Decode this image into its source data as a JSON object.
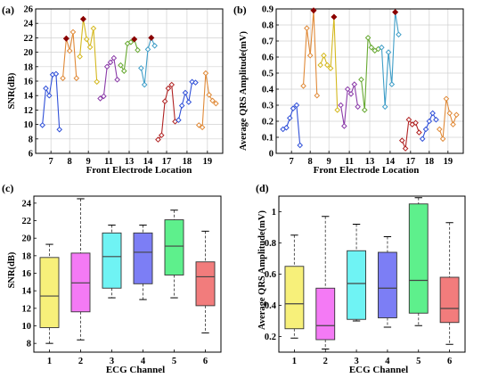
{
  "chart_data": [
    {
      "panel": "(a)",
      "type": "line",
      "xlabel": "Front Electrode Location",
      "ylabel": "SNR(dB)",
      "ylim": [
        6,
        26
      ],
      "yticks": [
        6,
        8,
        10,
        12,
        14,
        16,
        18,
        20,
        22,
        24,
        26
      ],
      "x_tick_labels": [
        "7",
        "8",
        "9",
        "11",
        "13",
        "14",
        "17",
        "18",
        "19"
      ],
      "grid": true,
      "groups": [
        {
          "label": "7",
          "color": "#3050d8",
          "points": [
            [
              0.4,
              9.9
            ],
            [
              0.6,
              15.0
            ],
            [
              0.8,
              14.0
            ],
            [
              1.0,
              16.9
            ],
            [
              1.2,
              17.0
            ],
            [
              1.4,
              9.3
            ]
          ],
          "star": null
        },
        {
          "label": "8",
          "color": "#e08a38",
          "points": [
            [
              1.6,
              16.4
            ],
            [
              1.8,
              21.9
            ],
            [
              2.0,
              20.2
            ],
            [
              2.2,
              22.8
            ],
            [
              2.4,
              16.4
            ]
          ],
          "star": [
            1.8,
            21.9
          ]
        },
        {
          "label": "9",
          "color": "#d4b81e",
          "points": [
            [
              2.6,
              19.4
            ],
            [
              2.8,
              24.6
            ],
            [
              3.0,
              21.8
            ],
            [
              3.2,
              20.7
            ],
            [
              3.4,
              23.3
            ],
            [
              3.6,
              15.9
            ]
          ],
          "star": [
            2.8,
            24.6
          ]
        },
        {
          "label": "11",
          "color": "#8a3aa8",
          "points": [
            [
              3.8,
              13.6
            ],
            [
              4.0,
              13.9
            ],
            [
              4.2,
              18.0
            ],
            [
              4.4,
              18.6
            ],
            [
              4.6,
              19.2
            ],
            [
              4.8,
              16.2
            ]
          ],
          "star": null
        },
        {
          "label": "13",
          "color": "#66a830",
          "points": [
            [
              5.0,
              18.2
            ],
            [
              5.2,
              17.4
            ],
            [
              5.4,
              21.2
            ],
            [
              5.6,
              21.4
            ],
            [
              5.8,
              21.8
            ],
            [
              6.0,
              20.3
            ]
          ],
          "star": [
            5.8,
            21.8
          ]
        },
        {
          "label": "14",
          "color": "#3f9ec8",
          "points": [
            [
              6.2,
              17.8
            ],
            [
              6.4,
              15.5
            ],
            [
              6.6,
              20.4
            ],
            [
              6.8,
              22.0
            ],
            [
              7.0,
              20.9
            ]
          ],
          "star": [
            6.8,
            22.0
          ]
        },
        {
          "label": "17",
          "color": "#b02222",
          "points": [
            [
              7.2,
              7.9
            ],
            [
              7.4,
              8.5
            ],
            [
              7.6,
              13.2
            ],
            [
              7.8,
              15.0
            ],
            [
              8.0,
              15.5
            ],
            [
              8.2,
              10.4
            ]
          ],
          "star": null
        },
        {
          "label": "18",
          "color": "#3050d8",
          "points": [
            [
              8.4,
              10.6
            ],
            [
              8.6,
              12.6
            ],
            [
              8.8,
              14.4
            ],
            [
              9.0,
              13.1
            ],
            [
              9.2,
              15.9
            ],
            [
              9.4,
              15.8
            ]
          ],
          "star": null
        },
        {
          "label": "19",
          "color": "#e08a38",
          "points": [
            [
              9.6,
              9.9
            ],
            [
              9.8,
              9.6
            ],
            [
              10.0,
              17.1
            ],
            [
              10.2,
              14.1
            ],
            [
              10.4,
              13.3
            ],
            [
              10.6,
              12.9
            ]
          ],
          "star": null
        }
      ],
      "xlim": [
        0,
        11
      ]
    },
    {
      "panel": "(b)",
      "type": "line",
      "xlabel": "Front Electrode Location",
      "ylabel": "Average QRS Amplitude(mV)",
      "ylim": [
        0,
        0.9
      ],
      "yticks": [
        0,
        0.1,
        0.2,
        0.3,
        0.4,
        0.5,
        0.6,
        0.7,
        0.8,
        0.9
      ],
      "x_tick_labels": [
        "7",
        "8",
        "9",
        "11",
        "13",
        "14",
        "17",
        "18",
        "19"
      ],
      "grid": true,
      "groups": [
        {
          "label": "7",
          "color": "#3050d8",
          "points": [
            [
              0.4,
              0.15
            ],
            [
              0.6,
              0.16
            ],
            [
              0.8,
              0.22
            ],
            [
              1.0,
              0.28
            ],
            [
              1.2,
              0.3
            ],
            [
              1.4,
              0.05
            ]
          ],
          "star": null
        },
        {
          "label": "8",
          "color": "#e08a38",
          "points": [
            [
              1.6,
              0.42
            ],
            [
              1.8,
              0.78
            ],
            [
              2.0,
              0.61
            ],
            [
              2.2,
              0.89
            ],
            [
              2.4,
              0.36
            ]
          ],
          "star": [
            2.2,
            0.89
          ]
        },
        {
          "label": "9",
          "color": "#d4b81e",
          "points": [
            [
              2.6,
              0.55
            ],
            [
              2.8,
              0.61
            ],
            [
              3.0,
              0.55
            ],
            [
              3.2,
              0.53
            ],
            [
              3.4,
              0.85
            ],
            [
              3.6,
              0.27
            ]
          ],
          "star": [
            3.4,
            0.85
          ]
        },
        {
          "label": "11",
          "color": "#8a3aa8",
          "points": [
            [
              3.8,
              0.3
            ],
            [
              4.0,
              0.17
            ],
            [
              4.2,
              0.4
            ],
            [
              4.4,
              0.37
            ],
            [
              4.6,
              0.43
            ],
            [
              4.8,
              0.29
            ]
          ],
          "star": null
        },
        {
          "label": "13",
          "color": "#66a830",
          "points": [
            [
              5.0,
              0.46
            ],
            [
              5.2,
              0.27
            ],
            [
              5.4,
              0.72
            ],
            [
              5.6,
              0.66
            ],
            [
              5.8,
              0.64
            ],
            [
              6.0,
              0.65
            ]
          ],
          "star": null
        },
        {
          "label": "14",
          "color": "#3f9ec8",
          "points": [
            [
              6.2,
              0.66
            ],
            [
              6.4,
              0.29
            ],
            [
              6.6,
              0.63
            ],
            [
              6.8,
              0.43
            ],
            [
              7.0,
              0.88
            ],
            [
              7.2,
              0.74
            ]
          ],
          "star": [
            7.0,
            0.88
          ]
        },
        {
          "label": "17",
          "color": "#b02222",
          "points": [
            [
              7.4,
              0.08
            ],
            [
              7.6,
              0.03
            ],
            [
              7.8,
              0.21
            ],
            [
              8.0,
              0.18
            ],
            [
              8.2,
              0.19
            ],
            [
              8.4,
              0.13
            ]
          ],
          "star": null
        },
        {
          "label": "18",
          "color": "#3050d8",
          "points": [
            [
              8.6,
              0.09
            ],
            [
              8.8,
              0.15
            ],
            [
              9.0,
              0.2
            ],
            [
              9.2,
              0.25
            ],
            [
              9.4,
              0.21
            ]
          ],
          "star": null
        },
        {
          "label": "19",
          "color": "#e08a38",
          "points": [
            [
              9.6,
              0.15
            ],
            [
              9.8,
              0.09
            ],
            [
              10.0,
              0.34
            ],
            [
              10.2,
              0.25
            ],
            [
              10.4,
              0.18
            ],
            [
              10.6,
              0.24
            ]
          ],
          "star": null
        }
      ],
      "xlim": [
        0,
        11
      ]
    },
    {
      "panel": "(c)",
      "type": "box",
      "xlabel": "ECG Channel",
      "ylabel": "SNR(dB)",
      "ylim": [
        7,
        24.8
      ],
      "yticks": [
        8,
        10,
        12,
        14,
        16,
        18,
        20,
        22,
        24
      ],
      "categories": [
        "1",
        "2",
        "3",
        "4",
        "5",
        "6"
      ],
      "grid": false,
      "boxes": [
        {
          "min": 8.0,
          "q1": 9.8,
          "median": 13.4,
          "q3": 17.8,
          "max": 19.3,
          "color": "#f7f07a"
        },
        {
          "min": 8.4,
          "q1": 11.6,
          "median": 14.9,
          "q3": 18.3,
          "max": 24.5,
          "color": "#f47af5"
        },
        {
          "min": 13.2,
          "q1": 14.3,
          "median": 17.9,
          "q3": 20.6,
          "max": 21.5,
          "color": "#6ff3f4"
        },
        {
          "min": 13.0,
          "q1": 14.8,
          "median": 18.4,
          "q3": 20.6,
          "max": 21.5,
          "color": "#7c7ef5"
        },
        {
          "min": 13.2,
          "q1": 15.8,
          "median": 19.1,
          "q3": 22.1,
          "max": 23.2,
          "color": "#5ef08c"
        },
        {
          "min": 9.2,
          "q1": 12.3,
          "median": 15.6,
          "q3": 17.3,
          "max": 20.8,
          "color": "#f27c7c"
        }
      ]
    },
    {
      "panel": "(d)",
      "type": "box",
      "xlabel": "ECG Channel",
      "ylabel": "Average QRS Amplitude(mV)",
      "ylim": [
        0.1,
        1.1
      ],
      "yticks": [
        0.2,
        0.4,
        0.6,
        0.8,
        1.0
      ],
      "ytick_labels": [
        "0.2",
        "0.4",
        "0.6",
        "0.8",
        "1"
      ],
      "categories": [
        "1",
        "2",
        "3",
        "4",
        "5",
        "6"
      ],
      "grid": false,
      "boxes": [
        {
          "min": 0.19,
          "q1": 0.25,
          "median": 0.41,
          "q3": 0.65,
          "max": 0.85,
          "color": "#f7f07a"
        },
        {
          "min": 0.12,
          "q1": 0.18,
          "median": 0.27,
          "q3": 0.51,
          "max": 0.97,
          "color": "#f47af5"
        },
        {
          "min": 0.3,
          "q1": 0.31,
          "median": 0.54,
          "q3": 0.75,
          "max": 0.92,
          "color": "#6ff3f4"
        },
        {
          "min": 0.26,
          "q1": 0.32,
          "median": 0.51,
          "q3": 0.74,
          "max": 0.84,
          "color": "#7c7ef5"
        },
        {
          "min": 0.27,
          "q1": 0.35,
          "median": 0.56,
          "q3": 1.05,
          "max": 1.09,
          "color": "#5ef08c"
        },
        {
          "min": 0.15,
          "q1": 0.29,
          "median": 0.38,
          "q3": 0.58,
          "max": 0.93,
          "color": "#f27c7c"
        }
      ]
    }
  ],
  "colors": {
    "star_fill": "#8b0000",
    "axis": "#000000",
    "grid": "#d0d0d0",
    "box_median": "#444444",
    "whisker": "#555555"
  }
}
